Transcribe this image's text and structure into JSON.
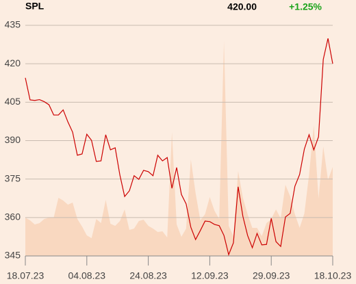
{
  "chart_data": {
    "type": "line",
    "symbol": "SPL",
    "last_price": "420.00",
    "change": "+1.25%",
    "change_color": "#1aa31a",
    "categories": [
      "18.07.23",
      null,
      null,
      null,
      null,
      null,
      null,
      null,
      null,
      null,
      null,
      null,
      null,
      "04.08.23",
      null,
      null,
      null,
      null,
      null,
      null,
      null,
      null,
      null,
      null,
      null,
      null,
      "24.08.23",
      null,
      null,
      null,
      null,
      null,
      null,
      null,
      null,
      null,
      null,
      null,
      null,
      "12.09.23",
      null,
      null,
      null,
      null,
      null,
      null,
      null,
      null,
      null,
      null,
      null,
      null,
      "29.09.23",
      null,
      null,
      null,
      null,
      null,
      null,
      null,
      null,
      null,
      null,
      null,
      null,
      "18.10.23"
    ],
    "series": [
      {
        "color": "#cc0000",
        "values": [
          414.5,
          405.9,
          405.7,
          406,
          405.2,
          404,
          400,
          400,
          402,
          397.3,
          393.3,
          384.3,
          384.8,
          392.5,
          390.1,
          381.9,
          382.1,
          392.3,
          386.4,
          387.2,
          376.5,
          368.2,
          370.4,
          376.3,
          374.9,
          378.4,
          377.9,
          376.3,
          384.3,
          382.1,
          383.4,
          371.4,
          379.5,
          369,
          365.3,
          356.2,
          351.4,
          354.9,
          358.6,
          358.4,
          357.3,
          356.8,
          353,
          345.5,
          350.1,
          372,
          360.5,
          353,
          348.2,
          353.8,
          349.3,
          349.5,
          359.7,
          350.6,
          348.7,
          360.2,
          361.6,
          372.2,
          376.8,
          386.7,
          392.3,
          386.4,
          391.5,
          421.7,
          429.9,
          420
        ]
      }
    ],
    "volume": {
      "color": "#f9d8c0",
      "values": [
        56,
        52,
        46,
        48,
        54,
        56,
        56,
        85,
        81,
        75,
        78,
        54,
        43,
        30,
        26,
        54,
        48,
        82,
        47,
        44,
        51,
        68,
        38,
        40,
        51,
        53,
        44,
        40,
        35,
        36,
        27,
        181,
        46,
        28,
        40,
        141,
        92,
        52,
        61,
        86,
        66,
        54,
        314,
        44,
        29,
        124,
        85,
        61,
        41,
        41,
        29,
        48,
        54,
        68,
        55,
        104,
        87,
        61,
        41,
        62,
        119,
        191,
        84,
        160,
        111,
        130
      ]
    },
    "ylim": [
      345,
      435
    ],
    "yticks": [
      345,
      360,
      375,
      390,
      405,
      420,
      435
    ],
    "grid": true
  }
}
